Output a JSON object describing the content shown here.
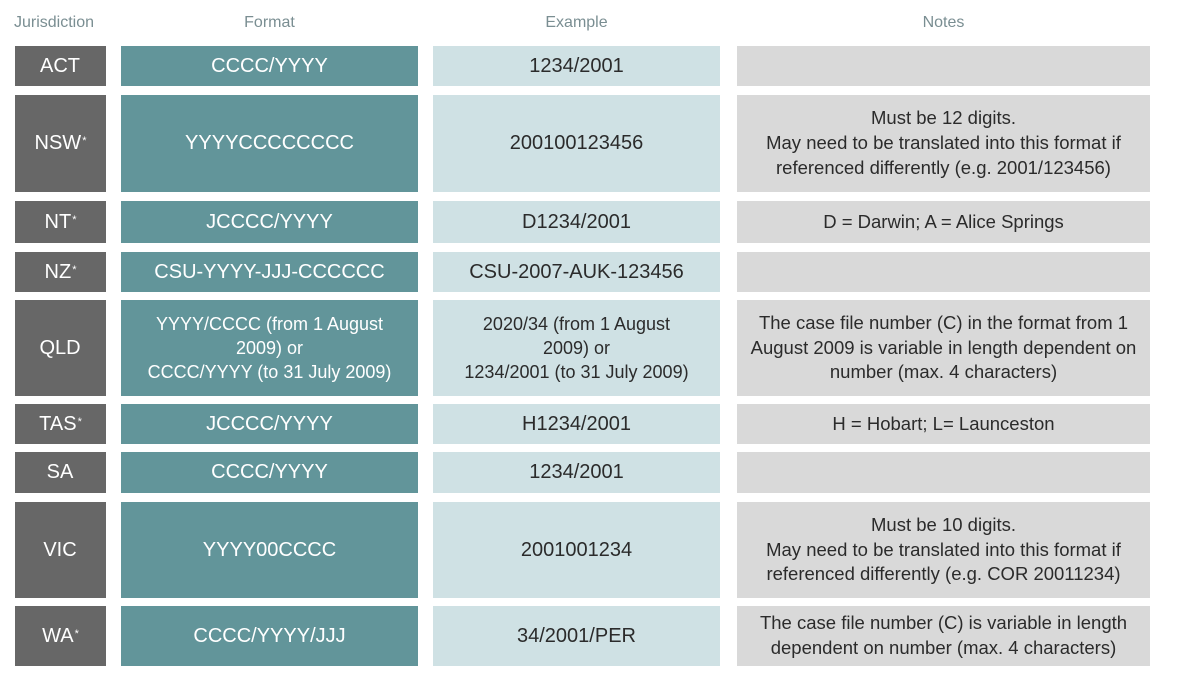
{
  "headers": {
    "jurisdiction": "Jurisdiction",
    "format": "Format",
    "example": "Example",
    "notes": "Notes"
  },
  "rows": [
    {
      "jurisdiction": "ACT",
      "star": "",
      "format": "CCCC/YYYY",
      "example": "1234/2001",
      "notes": ""
    },
    {
      "jurisdiction": "NSW",
      "star": "*",
      "format": "YYYYCCCCCCCC",
      "example": "200100123456",
      "notes": "Must be 12 digits.\nMay need to be translated into this format if referenced differently (e.g. 2001/123456)"
    },
    {
      "jurisdiction": "NT",
      "star": "*",
      "format": "JCCCC/YYYY",
      "example": "D1234/2001",
      "notes": "D = Darwin; A = Alice Springs"
    },
    {
      "jurisdiction": "NZ",
      "star": "*",
      "format": "CSU-YYYY-JJJ-CCCCCC",
      "example": "CSU-2007-AUK-123456",
      "notes": ""
    },
    {
      "jurisdiction": "QLD",
      "star": "",
      "format": "YYYY/CCCC (from 1 August\n2009) or\nCCCC/YYYY (to 31 July 2009)",
      "example": "2020/34 (from 1 August\n2009)  or\n1234/2001 (to 31 July 2009)",
      "notes": "The case file number (C) in the format from 1 August 2009 is variable in length dependent on number (max. 4 characters)"
    },
    {
      "jurisdiction": "TAS",
      "star": "*",
      "format": "JCCCC/YYYY",
      "example": "H1234/2001",
      "notes": "H = Hobart; L= Launceston"
    },
    {
      "jurisdiction": "SA",
      "star": "",
      "format": "CCCC/YYYY",
      "example": "1234/2001",
      "notes": ""
    },
    {
      "jurisdiction": "VIC",
      "star": "",
      "format": "YYYY00CCCC",
      "example": "2001001234",
      "notes": "Must be 10 digits.\nMay need to be translated into this format if referenced differently (e.g. COR 20011234)"
    },
    {
      "jurisdiction": "WA",
      "star": "*",
      "format": "CCCC/YYYY/JJJ",
      "example": "34/2001/PER",
      "notes": "The case file number (C) is variable in length dependent on number (max. 4 characters)"
    }
  ]
}
